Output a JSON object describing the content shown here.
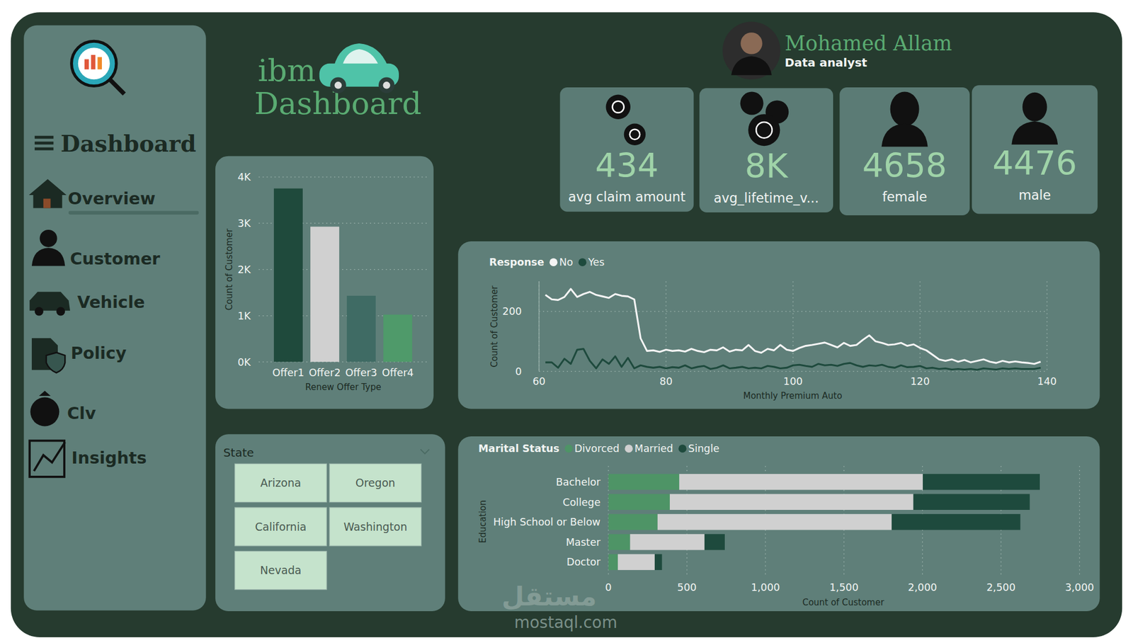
{
  "header": {
    "title_line1": "ibm",
    "title_line2": "Dashboard"
  },
  "profile": {
    "name": "Mohamed Allam",
    "role": "Data analyst"
  },
  "sidebar": {
    "title": "Dashboard",
    "items": [
      "Overview",
      "Customer",
      "Vehicle",
      "Policy",
      "Clv",
      "Insights"
    ]
  },
  "kpis": [
    {
      "value": 434,
      "label": "avg claim amount"
    },
    {
      "value": "8K",
      "label": "avg_lifetime_v..."
    },
    {
      "value": 4658,
      "label": "female"
    },
    {
      "value": 4476,
      "label": "male"
    }
  ],
  "slicer": {
    "title": "State",
    "items": [
      "Arizona",
      "Oregon",
      "California",
      "Washington",
      "Nevada"
    ]
  },
  "watermark": {
    "arabic": "مستقل",
    "latin": "mostaql.com"
  },
  "chart_data": [
    {
      "type": "bar",
      "x_label": "Renew Offer Type",
      "y_label": "Count of Customer",
      "categories": [
        "Offer1",
        "Offer2",
        "Offer3",
        "Offer4"
      ],
      "values": [
        3752,
        2926,
        1432,
        1024
      ],
      "colors": [
        "#1f4a3c",
        "#d0d0d0",
        "#3f6b64",
        "#4f9a6a"
      ],
      "ylim": [
        0,
        4000
      ],
      "yticks": [
        {
          "value": 0,
          "label": "0K"
        },
        {
          "value": 1000,
          "label": "1K"
        },
        {
          "value": 2000,
          "label": "2K"
        },
        {
          "value": 3000,
          "label": "3K"
        },
        {
          "value": 4000,
          "label": "4K"
        }
      ],
      "grid": true
    },
    {
      "type": "line",
      "x_label": "Monthly Premium Auto",
      "y_label": "Count of Customer",
      "legend_title": "Response",
      "legend": "top-left",
      "x": [
        61,
        62,
        63,
        64,
        65,
        66,
        67,
        68,
        69,
        70,
        71,
        72,
        73,
        74,
        75,
        76,
        77,
        78,
        79,
        80,
        81,
        82,
        83,
        84,
        85,
        86,
        87,
        88,
        89,
        90,
        91,
        92,
        93,
        94,
        95,
        96,
        97,
        98,
        99,
        100,
        101,
        102,
        103,
        104,
        105,
        106,
        107,
        108,
        109,
        110,
        111,
        112,
        113,
        114,
        115,
        116,
        117,
        118,
        119,
        120,
        121,
        122,
        123,
        124,
        125,
        126,
        127,
        128,
        129,
        130,
        131,
        132,
        133,
        134,
        135,
        136,
        137,
        138,
        139
      ],
      "series": [
        {
          "name": "No",
          "color": "#f4f4f4",
          "values": [
            255,
            240,
            238,
            248,
            275,
            248,
            258,
            265,
            255,
            250,
            245,
            258,
            252,
            250,
            240,
            110,
            68,
            70,
            65,
            72,
            68,
            70,
            66,
            75,
            68,
            64,
            72,
            70,
            80,
            66,
            72,
            70,
            88,
            68,
            62,
            75,
            70,
            88,
            72,
            68,
            78,
            85,
            88,
            92,
            96,
            88,
            80,
            95,
            85,
            88,
            105,
            120,
            100,
            95,
            88,
            90,
            95,
            85,
            90,
            78,
            70,
            55,
            40,
            35,
            40,
            32,
            38,
            30,
            35,
            40,
            32,
            28,
            35,
            30,
            33,
            30,
            28,
            25,
            32
          ]
        },
        {
          "name": "Yes",
          "color": "#1e4a3d",
          "values": [
            30,
            30,
            12,
            42,
            25,
            72,
            75,
            35,
            10,
            40,
            25,
            50,
            15,
            45,
            10,
            20,
            15,
            12,
            15,
            10,
            14,
            12,
            20,
            10,
            15,
            18,
            8,
            12,
            20,
            10,
            12,
            15,
            10,
            12,
            10,
            18,
            15,
            10,
            12,
            20,
            22,
            18,
            15,
            25,
            20,
            22,
            18,
            25,
            28,
            20,
            15,
            20,
            18,
            22,
            15,
            12,
            20,
            14,
            15,
            18,
            10,
            12,
            8,
            10,
            6,
            8,
            6,
            8,
            5,
            10,
            8,
            6,
            10,
            8,
            10,
            8,
            8,
            8,
            12
          ]
        }
      ],
      "xlim": [
        60,
        140
      ],
      "xticks": [
        60,
        80,
        100,
        120,
        140
      ],
      "ylim": [
        0,
        300
      ],
      "yticks": [
        0,
        200
      ],
      "grid": true
    },
    {
      "type": "bar",
      "orientation": "horizontal",
      "stacked": true,
      "x_label": "Count of Customer",
      "y_label": "Education",
      "legend_title": "Marital Status",
      "legend": "top-left",
      "categories": [
        "Bachelor",
        "College",
        "High School or Below",
        "Master",
        "Doctor"
      ],
      "series": [
        {
          "name": "Divorced",
          "color": "#4e9466",
          "values": [
            451,
            391,
            313,
            138,
            60
          ]
        },
        {
          "name": "Married",
          "color": "#d0d0d0",
          "values": [
            1551,
            1551,
            1491,
            474,
            235
          ]
        },
        {
          "name": "Single",
          "color": "#1e4a3d",
          "values": [
            745,
            741,
            819,
            129,
            46
          ]
        }
      ],
      "xlim": [
        0,
        3000
      ],
      "xticks": [
        0,
        500,
        {
          "value": 1000,
          "label": "1,000"
        },
        {
          "value": 1500,
          "label": "1,500"
        },
        {
          "value": 2000,
          "label": "2,000"
        },
        {
          "value": 2500,
          "label": "2,500"
        },
        {
          "value": 3000,
          "label": "3,000"
        }
      ],
      "grid": true
    }
  ]
}
